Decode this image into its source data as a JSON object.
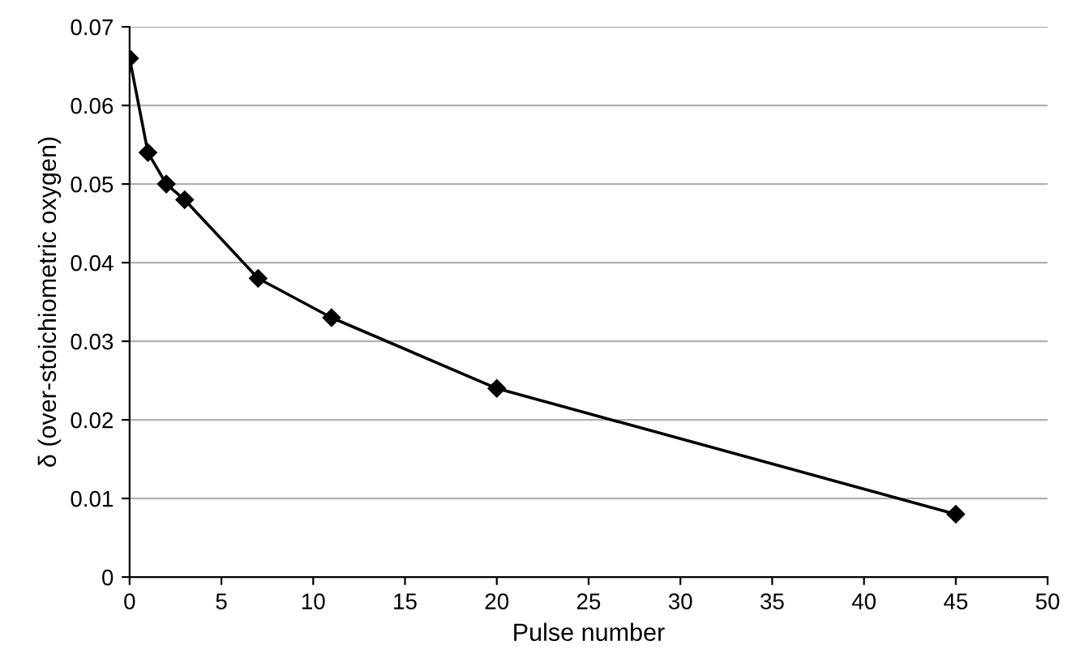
{
  "chart_data": {
    "type": "line",
    "xlabel": "Pulse number",
    "ylabel": "δ (over-stoichiometric oxygen)",
    "x": [
      0,
      1,
      2,
      3,
      7,
      11,
      20,
      45
    ],
    "series": [
      {
        "color": "#000000",
        "values": [
          0.066,
          0.054,
          0.05,
          0.048,
          0.038,
          0.033,
          0.024,
          0.008
        ]
      }
    ],
    "xlim": [
      0,
      50
    ],
    "xticks": [
      0,
      5,
      10,
      15,
      20,
      25,
      30,
      35,
      40,
      45,
      50
    ],
    "ylim": [
      0,
      0.07
    ],
    "yticks": [
      0,
      0.01,
      0.02,
      0.03,
      0.04,
      0.05,
      0.06,
      0.07
    ],
    "grid": "y",
    "marker": "diamond",
    "line_style": "solid",
    "legend": false
  }
}
